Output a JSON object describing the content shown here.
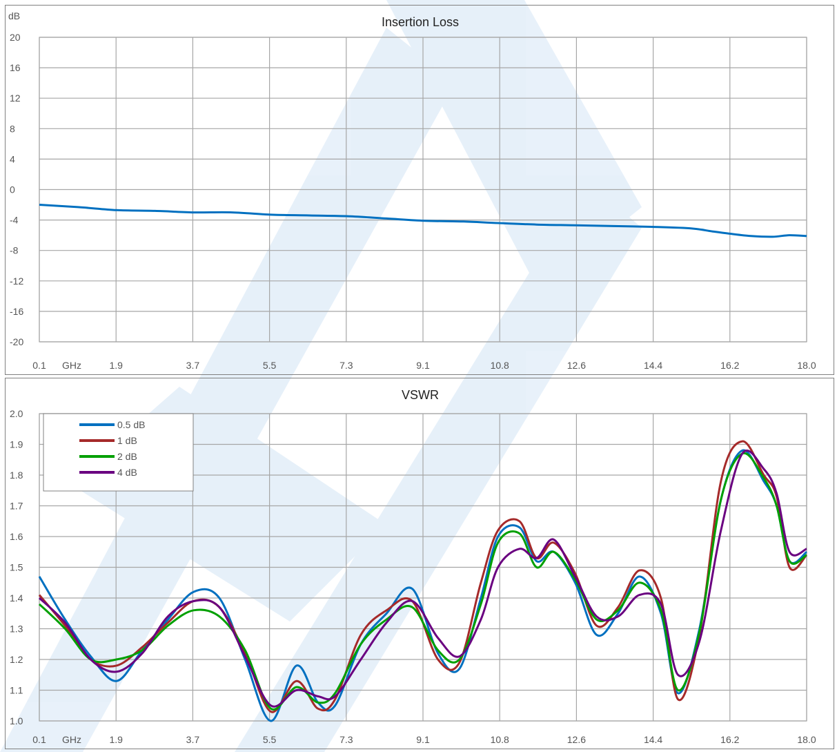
{
  "chart_data": [
    {
      "type": "line",
      "title": "Insertion Loss",
      "ylabel": "dB",
      "xunit": "GHz",
      "x_ticks": [
        "0.1",
        "1.9",
        "3.7",
        "5.5",
        "7.3",
        "9.1",
        "10.8",
        "12.6",
        "14.4",
        "16.2",
        "18.0"
      ],
      "y_ticks": [
        "20",
        "16",
        "12",
        "8",
        "4",
        "0",
        "-4",
        "-8",
        "-12",
        "-16",
        "-20"
      ],
      "xlim": [
        0.1,
        18.0
      ],
      "ylim": [
        -20,
        20
      ],
      "grid": true,
      "series": [
        {
          "color": "#0070c0",
          "x": [
            0.1,
            1.0,
            1.9,
            2.8,
            3.7,
            4.6,
            5.5,
            6.4,
            7.3,
            8.2,
            9.1,
            10.0,
            10.8,
            11.7,
            12.6,
            13.5,
            14.4,
            15.3,
            15.8,
            16.2,
            16.7,
            17.2,
            17.6,
            18.0
          ],
          "y": [
            -2.0,
            -2.3,
            -2.7,
            -2.8,
            -3.0,
            -3.0,
            -3.3,
            -3.4,
            -3.5,
            -3.8,
            -4.1,
            -4.2,
            -4.4,
            -4.6,
            -4.7,
            -4.8,
            -4.9,
            -5.1,
            -5.5,
            -5.8,
            -6.1,
            -6.2,
            -6.0,
            -6.1
          ]
        }
      ]
    },
    {
      "type": "line",
      "title": "VSWR",
      "xunit": "GHz",
      "x_ticks": [
        "0.1",
        "1.9",
        "3.7",
        "5.5",
        "7.3",
        "9.1",
        "10.8",
        "12.6",
        "14.4",
        "16.2",
        "18.0"
      ],
      "y_ticks": [
        "2.0",
        "1.9",
        "1.8",
        "1.7",
        "1.6",
        "1.5",
        "1.4",
        "1.3",
        "1.2",
        "1.1",
        "1.0"
      ],
      "xlim": [
        0.1,
        18.0
      ],
      "ylim": [
        1.0,
        2.0
      ],
      "grid": true,
      "legend": "top-left",
      "x": [
        0.1,
        0.7,
        1.3,
        1.9,
        2.5,
        3.1,
        3.7,
        4.3,
        4.9,
        5.5,
        6.1,
        6.6,
        7.0,
        7.6,
        8.2,
        8.8,
        9.4,
        9.9,
        10.4,
        10.8,
        11.3,
        11.7,
        12.1,
        12.6,
        13.1,
        13.6,
        14.1,
        14.6,
        15.0,
        15.5,
        16.0,
        16.5,
        17.0,
        17.3,
        17.6,
        18.0
      ],
      "series": [
        {
          "name": "0.5 dB",
          "color": "#0070c0",
          "values": [
            1.47,
            1.33,
            1.21,
            1.13,
            1.23,
            1.33,
            1.42,
            1.4,
            1.2,
            1.0,
            1.18,
            1.06,
            1.05,
            1.25,
            1.35,
            1.43,
            1.22,
            1.17,
            1.4,
            1.6,
            1.63,
            1.52,
            1.55,
            1.45,
            1.28,
            1.35,
            1.47,
            1.35,
            1.09,
            1.3,
            1.72,
            1.88,
            1.78,
            1.7,
            1.52,
            1.55
          ]
        },
        {
          "name": "1 dB",
          "color": "#a52a2a",
          "values": [
            1.41,
            1.31,
            1.2,
            1.18,
            1.24,
            1.32,
            1.39,
            1.37,
            1.22,
            1.03,
            1.13,
            1.04,
            1.07,
            1.28,
            1.36,
            1.39,
            1.2,
            1.19,
            1.45,
            1.62,
            1.65,
            1.53,
            1.58,
            1.48,
            1.31,
            1.37,
            1.49,
            1.4,
            1.07,
            1.28,
            1.78,
            1.91,
            1.8,
            1.73,
            1.5,
            1.54
          ]
        },
        {
          "name": "2 dB",
          "color": "#00a000",
          "values": [
            1.38,
            1.3,
            1.2,
            1.2,
            1.23,
            1.31,
            1.36,
            1.34,
            1.23,
            1.04,
            1.11,
            1.06,
            1.09,
            1.25,
            1.33,
            1.37,
            1.23,
            1.2,
            1.38,
            1.58,
            1.61,
            1.5,
            1.55,
            1.46,
            1.33,
            1.36,
            1.45,
            1.36,
            1.1,
            1.29,
            1.72,
            1.87,
            1.79,
            1.7,
            1.52,
            1.54
          ]
        },
        {
          "name": "4 dB",
          "color": "#6a0080",
          "values": [
            1.4,
            1.32,
            1.2,
            1.16,
            1.22,
            1.34,
            1.39,
            1.37,
            1.21,
            1.05,
            1.1,
            1.08,
            1.08,
            1.2,
            1.32,
            1.39,
            1.27,
            1.21,
            1.33,
            1.5,
            1.56,
            1.53,
            1.59,
            1.47,
            1.34,
            1.34,
            1.41,
            1.38,
            1.15,
            1.26,
            1.62,
            1.87,
            1.82,
            1.74,
            1.55,
            1.56
          ]
        }
      ]
    }
  ]
}
